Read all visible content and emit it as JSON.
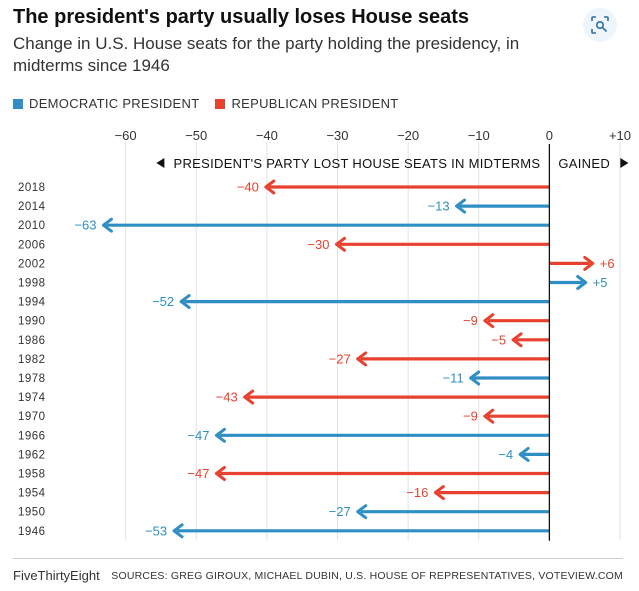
{
  "header": {
    "title": "The president's party usually loses House seats",
    "subtitle": "Change in U.S. House seats for the party holding the presidency, in midterms since 1946"
  },
  "legend": [
    {
      "label": "DEMOCRATIC PRESIDENT",
      "color": "#2f8fc4"
    },
    {
      "label": "REPUBLICAN PRESIDENT",
      "color": "#e8412f"
    }
  ],
  "toolbar": {
    "lens_icon": "lens-search-icon"
  },
  "chart_data": {
    "type": "bar",
    "orientation": "horizontal",
    "xlim": [
      -70,
      10
    ],
    "x_ticks": [
      -60,
      -50,
      -40,
      -30,
      -20,
      -10,
      0,
      10
    ],
    "x_tick_labels": [
      "−60",
      "−50",
      "−40",
      "−30",
      "−20",
      "−10",
      "0",
      "+10"
    ],
    "grid": true,
    "direction_labels": {
      "lost": "PRESIDENT'S PARTY LOST HOUSE SEATS IN MIDTERMS",
      "gained": "GAINED"
    },
    "colors": {
      "D": "#2f8fc4",
      "R": "#e8412f"
    },
    "bars": [
      {
        "year": "2018",
        "value": -40,
        "label": "−40",
        "party": "R"
      },
      {
        "year": "2014",
        "value": -13,
        "label": "−13",
        "party": "D"
      },
      {
        "year": "2010",
        "value": -63,
        "label": "−63",
        "party": "D"
      },
      {
        "year": "2006",
        "value": -30,
        "label": "−30",
        "party": "R"
      },
      {
        "year": "2002",
        "value": 6,
        "label": "+6",
        "party": "R"
      },
      {
        "year": "1998",
        "value": 5,
        "label": "+5",
        "party": "D"
      },
      {
        "year": "1994",
        "value": -52,
        "label": "−52",
        "party": "D"
      },
      {
        "year": "1990",
        "value": -9,
        "label": "−9",
        "party": "R"
      },
      {
        "year": "1986",
        "value": -5,
        "label": "−5",
        "party": "R"
      },
      {
        "year": "1982",
        "value": -27,
        "label": "−27",
        "party": "R"
      },
      {
        "year": "1978",
        "value": -11,
        "label": "−11",
        "party": "D"
      },
      {
        "year": "1974",
        "value": -43,
        "label": "−43",
        "party": "R"
      },
      {
        "year": "1970",
        "value": -9,
        "label": "−9",
        "party": "R"
      },
      {
        "year": "1966",
        "value": -47,
        "label": "−47",
        "party": "D"
      },
      {
        "year": "1962",
        "value": -4,
        "label": "−4",
        "party": "D"
      },
      {
        "year": "1958",
        "value": -47,
        "label": "−47",
        "party": "R"
      },
      {
        "year": "1954",
        "value": -16,
        "label": "−16",
        "party": "R"
      },
      {
        "year": "1950",
        "value": -27,
        "label": "−27",
        "party": "D"
      },
      {
        "year": "1946",
        "value": -53,
        "label": "−53",
        "party": "D"
      }
    ]
  },
  "footer": {
    "brand": "FiveThirtyEight",
    "sources": "SOURCES: GREG GIROUX, MICHAEL DUBIN, U.S. HOUSE OF REPRESENTATIVES, VOTEVIEW.COM"
  }
}
